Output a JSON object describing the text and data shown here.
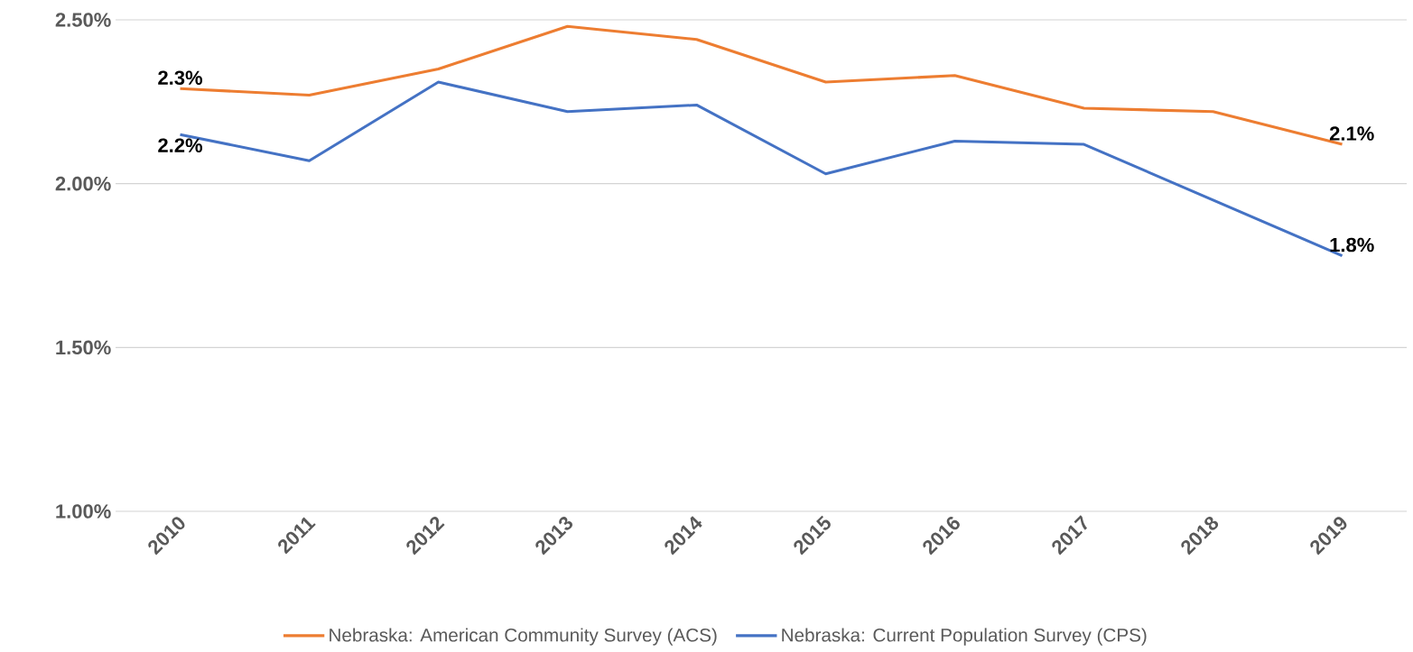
{
  "chart_data": {
    "type": "line",
    "categories": [
      "2010",
      "2011",
      "2012",
      "2013",
      "2014",
      "2015",
      "2016",
      "2017",
      "2018",
      "2019"
    ],
    "ylim": [
      1.0,
      2.5
    ],
    "yticks": [
      {
        "value": 1.0,
        "label": "1.00%"
      },
      {
        "value": 1.5,
        "label": "1.50%"
      },
      {
        "value": 2.0,
        "label": "2.00%"
      },
      {
        "value": 2.5,
        "label": "2.50%"
      }
    ],
    "grid": "y",
    "legend": "bottom",
    "marker": "none",
    "series": [
      {
        "name": "Nebraska: American Community Survey (ACS)",
        "color": "#ed7d31",
        "values": [
          2.29,
          2.27,
          2.35,
          2.48,
          2.44,
          2.31,
          2.33,
          2.23,
          2.22,
          2.12
        ],
        "value_labels": [
          "2.3%",
          null,
          null,
          null,
          null,
          null,
          null,
          null,
          null,
          "2.1%"
        ]
      },
      {
        "name": "Nebraska: Current Population Survey (CPS)",
        "color": "#4472c4",
        "values": [
          2.15,
          2.07,
          2.31,
          2.22,
          2.24,
          2.03,
          2.13,
          2.12,
          1.95,
          1.78
        ],
        "value_labels": [
          "2.2%",
          null,
          null,
          null,
          null,
          null,
          null,
          null,
          null,
          "1.8%"
        ]
      }
    ]
  }
}
